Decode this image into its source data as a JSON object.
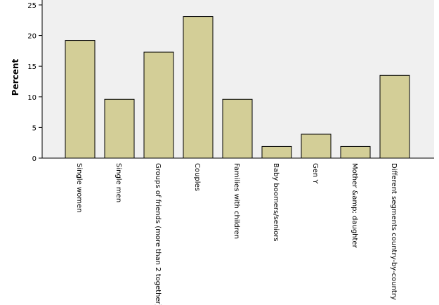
{
  "chart_data": {
    "type": "bar",
    "y_label": "Percent",
    "categories": [
      "Single women",
      "Single men",
      "Groups of friends (more than 2 together)",
      "Couples",
      "Families with children",
      "Baby boomers/seniors",
      "Gen Y",
      "Mother &amp; daughter",
      "Different segments country-by-country"
    ],
    "values": [
      19.2,
      9.6,
      17.3,
      23.1,
      9.6,
      1.9,
      3.9,
      1.9,
      13.5
    ],
    "color": "#d3ce97",
    "ylim": [
      0,
      25
    ],
    "yticks": [
      0,
      5,
      10,
      15,
      20,
      25
    ]
  }
}
